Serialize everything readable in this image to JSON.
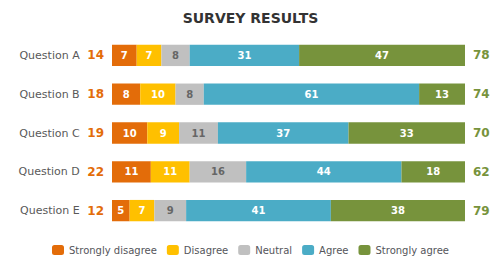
{
  "chart_data": {
    "type": "bar",
    "title": "SURVEY RESULTS",
    "orientation": "horizontal",
    "stacked": true,
    "data_labels": true,
    "tick_labels": "y",
    "legend": "bottom",
    "grid": false,
    "categories": [
      "Question A",
      "Question B",
      "Question C",
      "Question D",
      "Question E"
    ],
    "series": [
      {
        "name": "Strongly disagree",
        "color": "#E36C09",
        "values": [
          7,
          8,
          10,
          11,
          5
        ]
      },
      {
        "name": "Disagree",
        "color": "#FFC000",
        "values": [
          7,
          10,
          9,
          11,
          7
        ]
      },
      {
        "name": "Neutral",
        "color": "#C0C0C0",
        "values": [
          8,
          8,
          11,
          16,
          9
        ]
      },
      {
        "name": "Agree",
        "color": "#4BACC6",
        "values": [
          31,
          61,
          37,
          44,
          41
        ]
      },
      {
        "name": "Strongly agree",
        "color": "#77933C",
        "values": [
          47,
          13,
          33,
          18,
          38
        ]
      }
    ],
    "left_values": [
      14,
      18,
      19,
      22,
      12
    ],
    "right_values": [
      78,
      74,
      70,
      62,
      79
    ]
  }
}
